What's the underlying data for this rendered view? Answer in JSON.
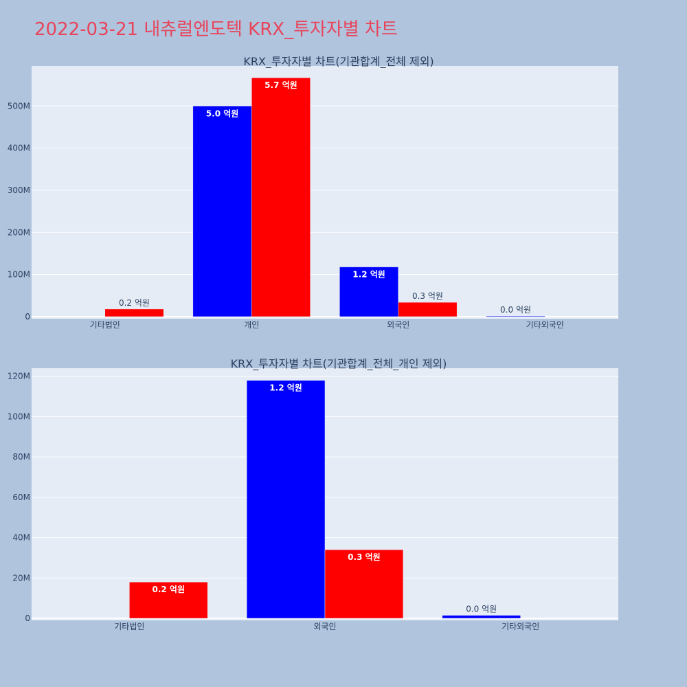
{
  "page_title": "2022-03-21 내츄럴엔도텍 KRX_투자자별 차트",
  "colors": {
    "background": "#b0c4de",
    "plot_background": "#e5ecf6",
    "buy": "#0000ff",
    "sell": "#ff0000",
    "title": "#e8445a",
    "axis_text": "#2a3f5f"
  },
  "chart_data": [
    {
      "type": "bar",
      "title": "KRX_투자자별 차트(기관합계_전체 제외)",
      "categories": [
        "기타법인",
        "개인",
        "외국인",
        "기타외국인"
      ],
      "series": [
        {
          "color": "#0000ff",
          "values": [
            0,
            500000000,
            118000000,
            1500000
          ],
          "labels": [
            "",
            "5.0 억원",
            "1.2 억원",
            "0.0 억원"
          ]
        },
        {
          "color": "#ff0000",
          "values": [
            18000000,
            567000000,
            34000000,
            0
          ],
          "labels": [
            "0.2 억원",
            "5.7 억원",
            "0.3 억원",
            ""
          ]
        }
      ],
      "yticks": [
        0,
        100000000,
        200000000,
        300000000,
        400000000,
        500000000
      ],
      "ytick_labels": [
        "0",
        "100M",
        "200M",
        "300M",
        "400M",
        "500M"
      ],
      "ylim": [
        -5000000,
        595000000
      ],
      "xlabel": "",
      "ylabel": "",
      "grid": true,
      "legend": "none"
    },
    {
      "type": "bar",
      "title": "KRX_투자자별 차트(기관합계_전체_개인 제외)",
      "categories": [
        "기타법인",
        "외국인",
        "기타외국인"
      ],
      "series": [
        {
          "color": "#0000ff",
          "values": [
            0,
            118000000,
            1500000
          ],
          "labels": [
            "",
            "1.2 억원",
            "0.0 억원"
          ]
        },
        {
          "color": "#ff0000",
          "values": [
            18000000,
            34000000,
            0
          ],
          "labels": [
            "0.2 억원",
            "0.3 억원",
            ""
          ]
        }
      ],
      "yticks": [
        0,
        20000000,
        40000000,
        60000000,
        80000000,
        100000000,
        120000000
      ],
      "ytick_labels": [
        "0",
        "20M",
        "40M",
        "60M",
        "80M",
        "100M",
        "120M"
      ],
      "ylim": [
        -1000000,
        124000000
      ],
      "xlabel": "",
      "ylabel": "",
      "grid": true,
      "legend": "none"
    }
  ]
}
